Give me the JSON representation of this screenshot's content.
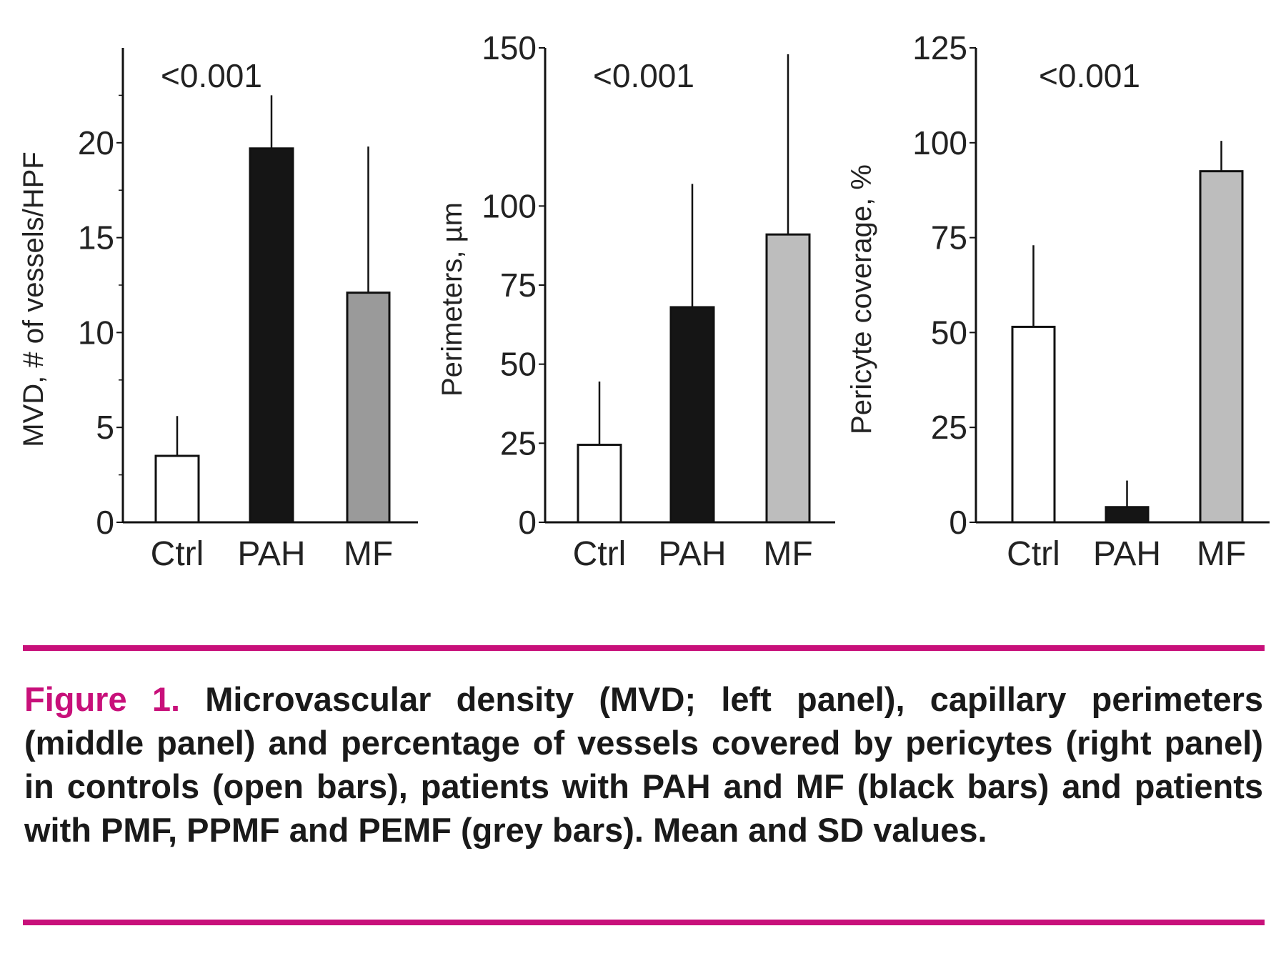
{
  "chart_data": [
    {
      "type": "bar",
      "categories": [
        "Ctrl",
        "PAH",
        "MF"
      ],
      "values": [
        3.5,
        19.7,
        12.1
      ],
      "error_upper": [
        5.6,
        22.5,
        19.8
      ],
      "ylabel": "MVD, # of vessels/HPF",
      "ylim": [
        0,
        25
      ],
      "yticks": [
        0,
        5,
        10,
        15,
        20
      ],
      "annotation": "<0.001",
      "grid": false
    },
    {
      "type": "bar",
      "categories": [
        "Ctrl",
        "PAH",
        "MF"
      ],
      "values": [
        24.5,
        68,
        91
      ],
      "error_upper": [
        44.5,
        107,
        148
      ],
      "ylabel": "Perimeters, µm",
      "ylim": [
        0,
        150
      ],
      "yticks": [
        0,
        25,
        50,
        75,
        100,
        150
      ],
      "annotation": "<0.001",
      "grid": false
    },
    {
      "type": "bar",
      "categories": [
        "Ctrl",
        "PAH",
        "MF"
      ],
      "values": [
        51.5,
        4,
        92.5
      ],
      "error_upper": [
        73,
        11,
        100.5
      ],
      "ylabel": "Pericyte coverage, %",
      "ylim": [
        0,
        125
      ],
      "yticks": [
        0,
        25,
        50,
        75,
        100,
        125
      ],
      "annotation": "<0.001",
      "grid": false
    }
  ],
  "colors": {
    "Ctrl": "#ffffff",
    "PAH": "#151515",
    "MF_left": "#9a9a9a",
    "MF": "#bdbdbd",
    "accent": "#c8107a"
  },
  "caption": {
    "label": "Figure 1.",
    "text": " Microvascular density (MVD; left panel), capillary perimeters (middle panel) and percentage of vessels covered by pericytes (right panel) in controls (open bars), patients with PAH and MF (black bars) and patients with PMF, PPMF and PEMF (grey bars). Mean and SD values."
  }
}
